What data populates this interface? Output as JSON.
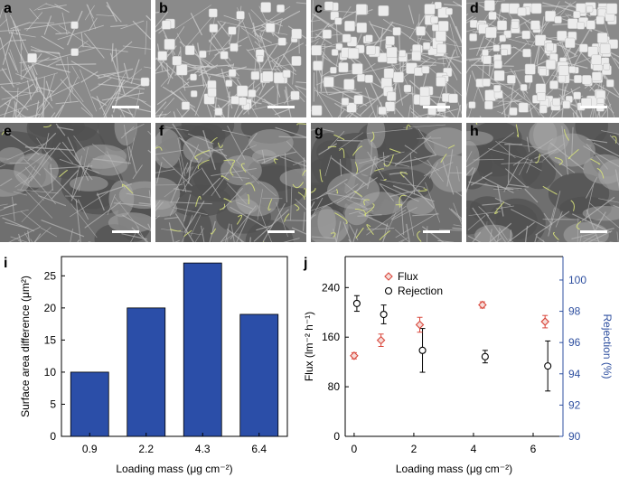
{
  "panels_top": [
    {
      "label": "a",
      "particles": 4
    },
    {
      "label": "b",
      "particles": 45
    },
    {
      "label": "c",
      "particles": 85
    },
    {
      "label": "d",
      "particles": 130
    }
  ],
  "panels_bottom": [
    {
      "label": "e",
      "fibers": 4
    },
    {
      "label": "f",
      "fibers": 28
    },
    {
      "label": "g",
      "fibers": 30
    },
    {
      "label": "h",
      "fibers": 14
    }
  ],
  "chart_i_label": "i",
  "chart_j_label": "j",
  "colors": {
    "bar": "#2b4ea8",
    "flux": "#d9473c",
    "rejection": "#000000",
    "right_axis": "#2f50a0",
    "fiber": "#d6e07a"
  },
  "chart_data": [
    {
      "type": "bar",
      "categories": [
        "0.9",
        "2.2",
        "4.3",
        "6.4"
      ],
      "values": [
        10,
        20,
        27,
        19
      ],
      "xlabel": "Loading mass (μg cm⁻²)",
      "ylabel": "Surface area difference (μm²)",
      "ylim": [
        0,
        28
      ],
      "yticks": [
        "0",
        "5",
        "10",
        "15",
        "20",
        "25"
      ]
    },
    {
      "type": "scatter",
      "x": [
        0,
        0.9,
        2.2,
        4.3,
        6.4
      ],
      "xticks": [
        "0",
        "2",
        "4",
        "6"
      ],
      "xlabel": "Loading mass (μg cm⁻²)",
      "ylabel": "Flux (lm⁻² h⁻¹)",
      "ylabel_right": "Rejection (%)",
      "ylim": [
        0,
        290
      ],
      "yticks_left": [
        "0",
        "80",
        "160",
        "240"
      ],
      "ylim_right": [
        90,
        101.5
      ],
      "yticks_right": [
        "90",
        "92",
        "94",
        "96",
        "98",
        "100"
      ],
      "series": [
        {
          "name": "Flux",
          "axis": "left",
          "values": [
            130,
            155,
            180,
            212,
            185
          ],
          "errors": [
            5,
            10,
            12,
            5,
            10
          ]
        },
        {
          "name": "Rejection",
          "axis": "right",
          "values": [
            98.5,
            97.8,
            95.5,
            95.1,
            94.5
          ],
          "errors": [
            0.5,
            0.6,
            1.4,
            0.4,
            1.6
          ]
        }
      ],
      "legend": "top-left"
    }
  ]
}
